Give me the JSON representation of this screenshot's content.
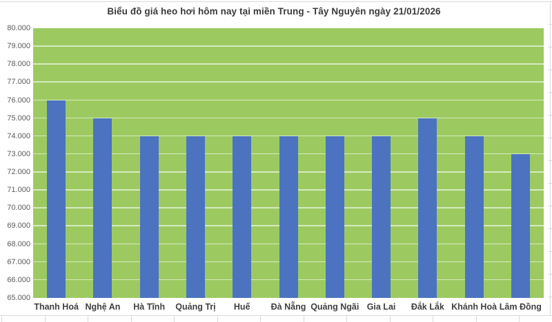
{
  "chart": {
    "colors": {
      "plot_background": "#9CCA61",
      "bar": "#4B73C0",
      "gridline": "rgba(255,255,255,0.6)",
      "title_text": "#3A3A3A",
      "axis_tick_label": "#595959",
      "category_label": "#404040",
      "sheet_gridline": "#D9D9D9"
    }
  },
  "chart_data": {
    "type": "bar",
    "title": "Biểu đồ giá heo hơi hôm nay tại miền Trung - Tây Nguyên ngày 21/01/2026",
    "categories": [
      "Thanh Hoá",
      "Nghệ An",
      "Hà Tĩnh",
      "Quảng Trị",
      "Huế",
      "Đà Nẵng",
      "Quảng Ngãi",
      "Gia Lai",
      "Đắk Lắk",
      "Khánh Hoà",
      "Lâm Đồng"
    ],
    "values": [
      76000,
      75000,
      74000,
      74000,
      74000,
      74000,
      74000,
      74000,
      75000,
      74000,
      73000
    ],
    "xlabel": "",
    "ylabel": "",
    "ylim": [
      65000,
      80000
    ],
    "ytick_step": 1000,
    "ytick_labels": [
      "80.000",
      "79.000",
      "78.000",
      "77.000",
      "76.000",
      "75.000",
      "74.000",
      "73.000",
      "72.000",
      "71.000",
      "70.000",
      "69.000",
      "68.000",
      "67.000",
      "66.000",
      "65.000"
    ],
    "grid": true,
    "legend": false
  }
}
